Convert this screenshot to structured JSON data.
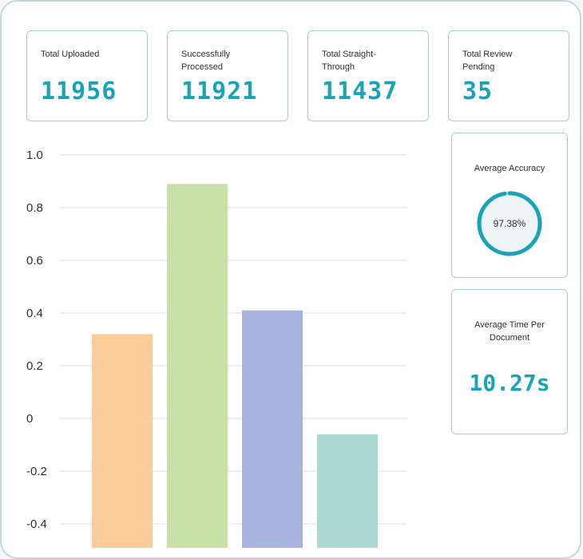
{
  "stats": [
    {
      "label": "Total Uploaded",
      "value": "11956"
    },
    {
      "label": "Successfully Processed",
      "value": "11921"
    },
    {
      "label": "Total Straight-Through",
      "value": "11437"
    },
    {
      "label": "Total Review Pending",
      "value": "35"
    }
  ],
  "accuracy": {
    "title": "Average Accuracy",
    "value_text": "97.38%",
    "fraction": 0.9738
  },
  "time_per_doc": {
    "title": "Average Time Per Document",
    "value": "10.27s"
  },
  "colors": {
    "accent": "#1aa3b8",
    "bars": [
      "#f9cc9a",
      "#c9e1a7",
      "#a8b3df",
      "#acd9d2"
    ],
    "grid": "#cfe3e7"
  },
  "chart_data": {
    "type": "bar",
    "categories": [
      "",
      "",
      "",
      ""
    ],
    "values": [
      0.32,
      0.89,
      0.41,
      -0.06
    ],
    "title": "",
    "xlabel": "",
    "ylabel": "",
    "ylim": [
      -0.4,
      1.0
    ],
    "yticks": [
      1.0,
      0.8,
      0.6,
      0.4,
      0.2,
      0,
      -0.2,
      -0.4
    ],
    "ytick_labels": [
      "1.0",
      "0.8",
      "0.6",
      "0.4",
      "0.2",
      "0",
      "-0.2",
      "-0.4"
    ]
  }
}
